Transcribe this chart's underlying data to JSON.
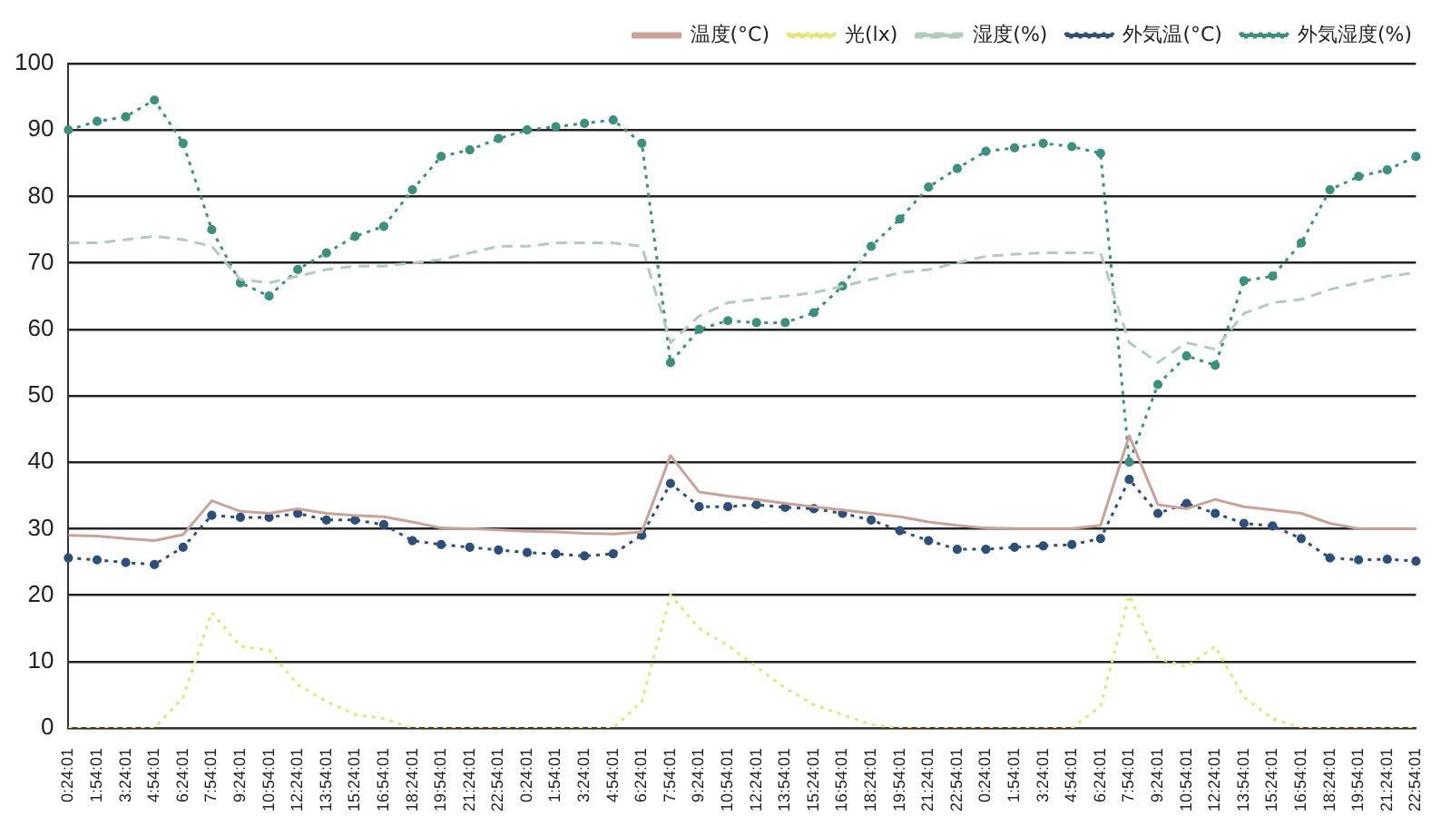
{
  "chart_data": {
    "type": "line",
    "categories": [
      "0:24:01",
      "1:54:01",
      "3:24:01",
      "4:54:01",
      "6:24:01",
      "7:54:01",
      "9:24:01",
      "10:54:01",
      "12:24:01",
      "13:54:01",
      "15:24:01",
      "16:54:01",
      "18:24:01",
      "19:54:01",
      "21:24:01",
      "22:54:01",
      "0:24:01",
      "1:54:01",
      "3:24:01",
      "4:54:01",
      "6:24:01",
      "7:54:01",
      "9:24:01",
      "10:54:01",
      "12:24:01",
      "13:54:01",
      "15:24:01",
      "16:54:01",
      "18:24:01",
      "19:54:01",
      "21:24:01",
      "22:54:01",
      "0:24:01",
      "1:54:01",
      "3:24:01",
      "4:54:01",
      "6:24:01",
      "7:54:01",
      "9:24:01",
      "10:54:01",
      "12:24:01",
      "13:54:01",
      "15:24:01",
      "16:54:01",
      "18:24:01",
      "19:54:01",
      "21:24:01",
      "22:54:01"
    ],
    "series": [
      {
        "name": "温度(°C)",
        "color": "#c9a39a",
        "line_style": "solid",
        "marker": "none",
        "values": [
          29,
          28.9,
          28.5,
          28.2,
          29.1,
          34.2,
          32.6,
          32.3,
          33,
          32.3,
          32,
          31.8,
          31,
          30.1,
          30,
          29.8,
          29.6,
          29.5,
          29.3,
          29.2,
          29.5,
          41,
          35.5,
          34.9,
          34.4,
          33.8,
          33.3,
          32.8,
          32.3,
          31.8,
          31,
          30.5,
          30.1,
          30,
          30,
          30,
          30.5,
          44,
          33.6,
          33,
          34.4,
          33.3,
          32.8,
          32.3,
          30.8,
          30,
          30,
          30
        ]
      },
      {
        "name": "光(lx)",
        "color": "#e3e67a",
        "line_style": "dotted",
        "marker": "none",
        "values": [
          0,
          0,
          0,
          0,
          4.6,
          17.4,
          12.3,
          11.7,
          6.5,
          4,
          2,
          1.4,
          0,
          0,
          0,
          0,
          0,
          0,
          0,
          0,
          4,
          20,
          15,
          12.4,
          9.2,
          6,
          3.5,
          2,
          0.5,
          0,
          0,
          0,
          0,
          0,
          0,
          0,
          3.3,
          20,
          10.5,
          9.2,
          12.3,
          4.6,
          1.4,
          0,
          0,
          0,
          0,
          0
        ]
      },
      {
        "name": "湿度(%)",
        "color": "#b3cbbf",
        "line_style": "dashed",
        "marker": "none",
        "values": [
          73,
          73,
          73.5,
          74,
          73.5,
          72.5,
          67.5,
          67,
          68,
          69,
          69.5,
          69.5,
          70,
          70.5,
          71.5,
          72.5,
          72.5,
          73,
          73,
          73,
          72.5,
          58,
          62,
          64,
          64.5,
          65,
          65.5,
          66.5,
          67.5,
          68.5,
          69,
          70,
          71,
          71.3,
          71.5,
          71.5,
          71.5,
          58,
          55,
          58,
          57,
          62.4,
          64,
          64.5,
          66,
          67,
          68,
          68.5
        ]
      },
      {
        "name": "外気温(°C)",
        "color": "#2f4f78",
        "line_style": "dotted",
        "marker": "circle",
        "values": [
          25.6,
          25.3,
          24.9,
          24.6,
          27.2,
          32,
          31.7,
          31.7,
          32.3,
          31.3,
          31.3,
          30.6,
          28.2,
          27.6,
          27.2,
          26.8,
          26.4,
          26.2,
          25.9,
          26.2,
          29,
          36.8,
          33.3,
          33.3,
          33.6,
          33.2,
          33,
          32.3,
          31.3,
          29.7,
          28.2,
          26.9,
          26.9,
          27.2,
          27.4,
          27.6,
          28.5,
          37.4,
          32.3,
          33.8,
          32.3,
          30.8,
          30.4,
          28.5,
          25.6,
          25.3,
          25.4,
          25.1
        ]
      },
      {
        "name": "外気湿度(%)",
        "color": "#3d8f7e",
        "line_style": "dotted",
        "marker": "circle",
        "values": [
          90,
          91.3,
          92,
          94.5,
          88,
          75,
          67,
          65,
          69,
          71.5,
          74,
          75.5,
          81,
          86,
          87,
          88.7,
          90,
          90.5,
          91,
          91.5,
          88,
          55,
          60,
          61.3,
          61,
          61,
          62.5,
          66.5,
          72.5,
          76.6,
          81.4,
          84.2,
          86.8,
          87.3,
          88,
          87.5,
          86.5,
          40,
          51.7,
          56,
          54.6,
          67.3,
          68,
          73,
          81,
          83,
          84,
          86
        ]
      }
    ],
    "ylim": [
      0,
      100
    ],
    "yticks": [
      0,
      10,
      20,
      30,
      40,
      50,
      60,
      70,
      80,
      90,
      100
    ],
    "grid": "y",
    "legend": "top right"
  }
}
